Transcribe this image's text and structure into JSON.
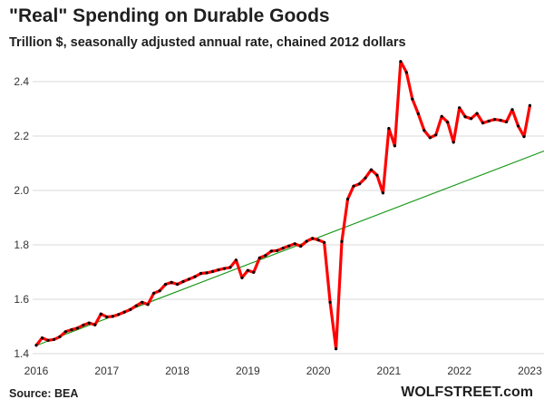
{
  "title": "\"Real\" Spending on Durable Goods",
  "subtitle": "Trillion $, seasonally adjusted annual rate, chained 2012 dollars",
  "source": "Source: BEA",
  "brand": "WOLFSTREET.com",
  "colors": {
    "series": "#ff0000",
    "marker": "#000000",
    "trend": "#1a9a1a",
    "grid": "#d9d9d9"
  },
  "chart_data": {
    "type": "line",
    "ylim": [
      1.38,
      2.5
    ],
    "yticks": [
      1.4,
      1.6,
      1.8,
      2.0,
      2.2,
      2.4
    ],
    "ytick_labels": [
      "1.4",
      "1.6",
      "1.8",
      "2.0",
      "2.2",
      "2.4"
    ],
    "xlim": [
      2016.0,
      2023.2
    ],
    "xticks": [
      2016,
      2017,
      2018,
      2019,
      2020,
      2021,
      2022,
      2023
    ],
    "xtick_labels": [
      "2016",
      "2017",
      "2018",
      "2019",
      "2020",
      "2021",
      "2022",
      "2023"
    ],
    "grid": "horizontal",
    "series": [
      {
        "role": "actual",
        "x_start": 2016.0,
        "x_step_months": 1,
        "values": [
          1.431,
          1.458,
          1.449,
          1.452,
          1.462,
          1.481,
          1.488,
          1.494,
          1.505,
          1.513,
          1.506,
          1.546,
          1.535,
          1.537,
          1.544,
          1.553,
          1.562,
          1.576,
          1.589,
          1.581,
          1.622,
          1.631,
          1.655,
          1.662,
          1.655,
          1.665,
          1.674,
          1.683,
          1.695,
          1.697,
          1.702,
          1.708,
          1.713,
          1.717,
          1.744,
          1.679,
          1.706,
          1.699,
          1.752,
          1.761,
          1.777,
          1.779,
          1.788,
          1.796,
          1.804,
          1.795,
          1.813,
          1.824,
          1.818,
          1.809,
          1.589,
          1.418,
          1.812,
          1.968,
          2.016,
          2.024,
          2.046,
          2.076,
          2.056,
          1.991,
          2.228,
          2.164,
          2.474,
          2.434,
          2.336,
          2.282,
          2.221,
          2.194,
          2.204,
          2.272,
          2.251,
          2.177,
          2.304,
          2.271,
          2.264,
          2.283,
          2.248,
          2.255,
          2.261,
          2.258,
          2.252,
          2.297,
          2.237,
          2.198,
          2.312
        ]
      },
      {
        "role": "trend",
        "x": [
          2016.0,
          2023.2
        ],
        "values": [
          1.43,
          2.145
        ]
      }
    ]
  }
}
